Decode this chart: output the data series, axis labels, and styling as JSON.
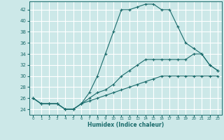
{
  "xlabel": "Humidex (Indice chaleur)",
  "bg_color": "#cce8e8",
  "grid_color": "#ffffff",
  "line_color": "#1a6b6b",
  "xlim": [
    -0.5,
    23.5
  ],
  "ylim": [
    23.0,
    43.5
  ],
  "yticks": [
    24,
    26,
    28,
    30,
    32,
    34,
    36,
    38,
    40,
    42
  ],
  "xticks": [
    0,
    1,
    2,
    3,
    4,
    5,
    6,
    7,
    8,
    9,
    10,
    11,
    12,
    13,
    14,
    15,
    16,
    17,
    18,
    19,
    20,
    21,
    22,
    23
  ],
  "line1": [
    26,
    25,
    25,
    25,
    24,
    24,
    25,
    27,
    30,
    34,
    38,
    42,
    42,
    42.5,
    43,
    43,
    42,
    42,
    39,
    36,
    35,
    34,
    32,
    31
  ],
  "line2": [
    26,
    25,
    25,
    25,
    24,
    24,
    25,
    26,
    27,
    27.5,
    28.5,
    30,
    31,
    32,
    33,
    33,
    33,
    33,
    33,
    33,
    34,
    34,
    32,
    31
  ],
  "line3": [
    26,
    25,
    25,
    25,
    24,
    24,
    25,
    25.5,
    26,
    26.5,
    27,
    27.5,
    28,
    28.5,
    29,
    29.5,
    30,
    30,
    30,
    30,
    30,
    30,
    30,
    30
  ]
}
